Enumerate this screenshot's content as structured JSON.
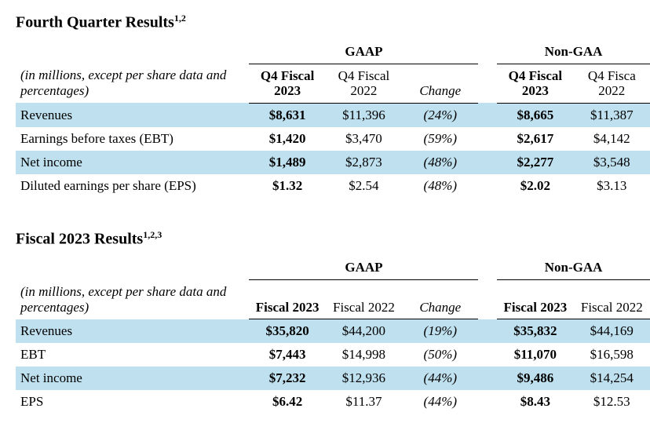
{
  "colors": {
    "row_shade": "#bfe0ee",
    "text": "#000000",
    "background": "#ffffff",
    "rule": "#000000"
  },
  "typography": {
    "family": "Times New Roman",
    "base_size_pt": 13,
    "heading_size_pt": 15
  },
  "section1": {
    "heading": "Fourth Quarter Results",
    "heading_sup": "1,2",
    "caption": "(in millions, except per share data and percentages)",
    "group_gaap": "GAAP",
    "group_nongaap": "Non-GAA",
    "cols": {
      "c1": "Q4 Fiscal 2023",
      "c2": "Q4 Fiscal 2022",
      "c3": "Change",
      "c4": "Q4 Fiscal 2023",
      "c5": "Q4 Fisca 2022"
    },
    "rows": [
      {
        "label": "Revenues",
        "c1": "$8,631",
        "c2": "$11,396",
        "c3": "(24%)",
        "c4": "$8,665",
        "c5": "$11,387",
        "shade": true
      },
      {
        "label": "Earnings before taxes (EBT)",
        "c1": "$1,420",
        "c2": "$3,470",
        "c3": "(59%)",
        "c4": "$2,617",
        "c5": "$4,142",
        "shade": false
      },
      {
        "label": "Net income",
        "c1": "$1,489",
        "c2": "$2,873",
        "c3": "(48%)",
        "c4": "$2,277",
        "c5": "$3,548",
        "shade": true
      },
      {
        "label": "Diluted earnings per share (EPS)",
        "c1": "$1.32",
        "c2": "$2.54",
        "c3": "(48%)",
        "c4": "$2.02",
        "c5": "$3.13",
        "shade": false
      }
    ]
  },
  "section2": {
    "heading": "Fiscal 2023 Results",
    "heading_sup": "1,2,3",
    "caption": "(in millions, except per share data and percentages)",
    "group_gaap": "GAAP",
    "group_nongaap": "Non-GAA",
    "cols": {
      "c1": "Fiscal 2023",
      "c2": "Fiscal 2022",
      "c3": "Change",
      "c4": "Fiscal 2023",
      "c5": "Fiscal 2022"
    },
    "rows": [
      {
        "label": "Revenues",
        "c1": "$35,820",
        "c2": "$44,200",
        "c3": "(19%)",
        "c4": "$35,832",
        "c5": "$44,169",
        "shade": true
      },
      {
        "label": "EBT",
        "c1": "$7,443",
        "c2": "$14,998",
        "c3": "(50%)",
        "c4": "$11,070",
        "c5": "$16,598",
        "shade": false
      },
      {
        "label": "Net income",
        "c1": "$7,232",
        "c2": "$12,936",
        "c3": "(44%)",
        "c4": "$9,486",
        "c5": "$14,254",
        "shade": true
      },
      {
        "label": "EPS",
        "c1": "$6.42",
        "c2": "$11.37",
        "c3": "(44%)",
        "c4": "$8.43",
        "c5": "$12.53",
        "shade": false
      }
    ]
  }
}
